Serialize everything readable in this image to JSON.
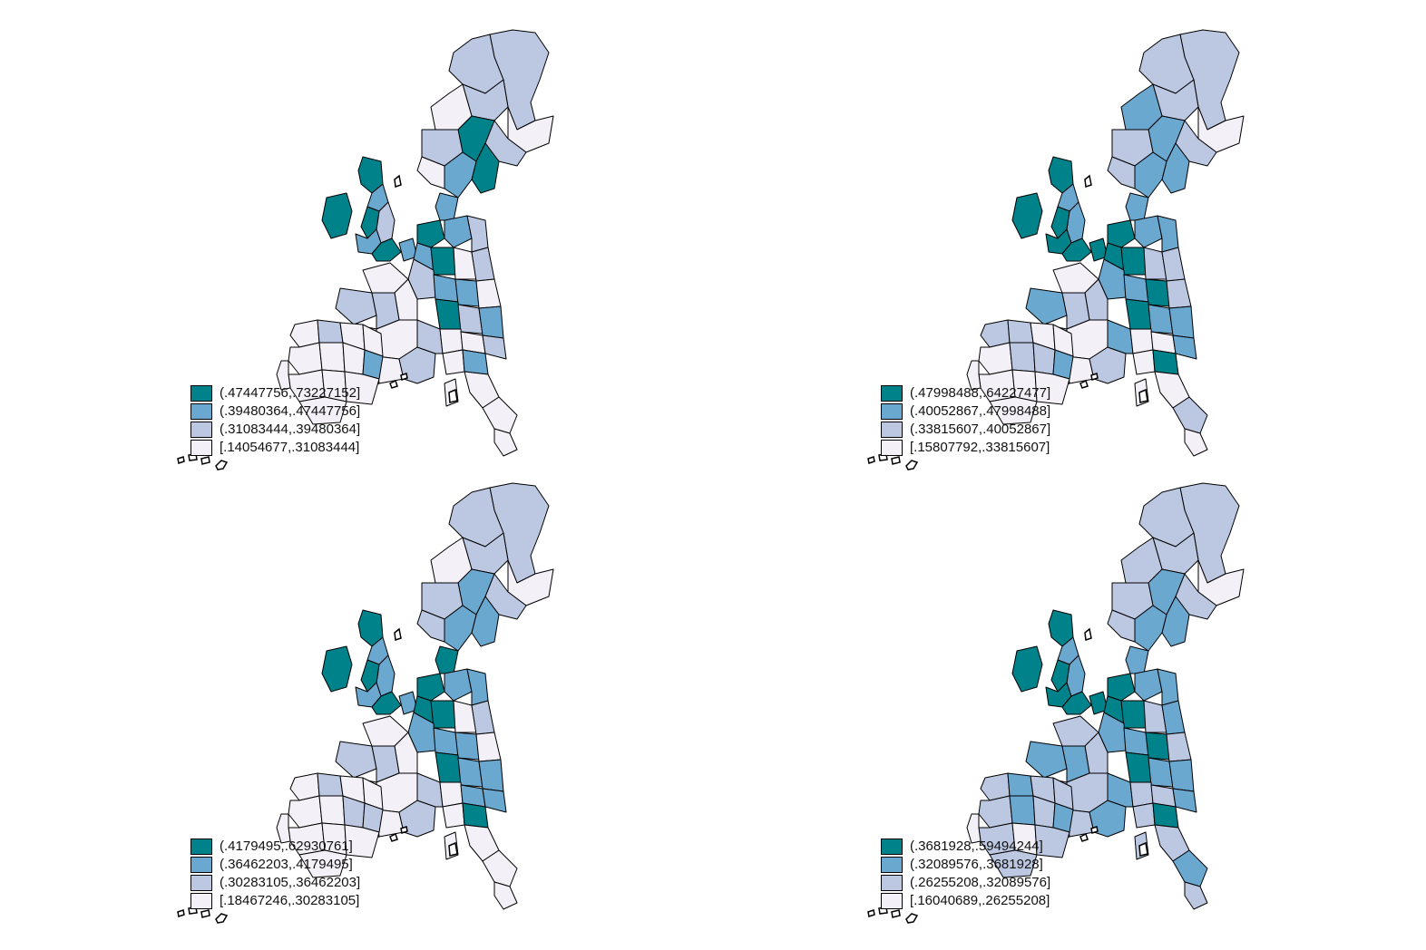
{
  "colors": {
    "class4": "#00828a",
    "class3": "#6aa8d0",
    "class2": "#bcc8e2",
    "class1": "#f4f0f8",
    "border": "#000000"
  },
  "maps": [
    {
      "legend": [
        {
          "label": "(.47447756,.73227152]",
          "class": 4
        },
        {
          "label": "(.39480364,.47447756]",
          "class": 3
        },
        {
          "label": "(.31083444,.39480364]",
          "class": 2
        },
        {
          "label": "[.14054677,.31083444]",
          "class": 1
        }
      ],
      "region_classes": [
        2,
        2,
        1,
        2,
        1,
        2,
        4,
        4,
        2,
        3,
        1,
        3,
        4,
        3,
        2,
        4,
        3,
        4,
        4,
        3,
        4,
        3,
        2,
        3,
        4,
        1,
        2,
        2,
        3,
        3,
        1,
        4,
        2,
        3,
        1,
        1,
        2,
        2,
        1,
        1,
        1,
        1,
        2,
        2,
        1,
        1,
        2,
        1,
        3,
        1,
        1,
        1,
        1,
        1,
        2,
        1,
        1,
        1,
        1,
        1,
        3,
        1,
        1,
        1,
        1
      ]
    },
    {
      "legend": [
        {
          "label": "(.47998488,.64227477]",
          "class": 4
        },
        {
          "label": "(.40052867,.47998488]",
          "class": 3
        },
        {
          "label": "(.33815607,.40052867]",
          "class": 2
        },
        {
          "label": "[.15807792,.33815607]",
          "class": 1
        }
      ],
      "region_classes": [
        2,
        2,
        1,
        2,
        3,
        2,
        3,
        3,
        2,
        3,
        2,
        3,
        4,
        3,
        3,
        4,
        4,
        4,
        4,
        4,
        4,
        3,
        3,
        4,
        4,
        2,
        2,
        3,
        3,
        4,
        2,
        4,
        3,
        3,
        1,
        2,
        3,
        2,
        2,
        1,
        2,
        1,
        2,
        3,
        1,
        1,
        3,
        1,
        4,
        1,
        2,
        1,
        1,
        2,
        2,
        1,
        1,
        1,
        2,
        2,
        3,
        1,
        1,
        1,
        1
      ]
    },
    {
      "legend": [
        {
          "label": "(.4179495,.62930761]",
          "class": 4
        },
        {
          "label": "(.36462203,.4179495]",
          "class": 3
        },
        {
          "label": "(.30283105,.36462203]",
          "class": 2
        },
        {
          "label": "[.18467246,.30283105]",
          "class": 1
        }
      ],
      "region_classes": [
        2,
        2,
        1,
        2,
        1,
        2,
        3,
        3,
        2,
        3,
        2,
        4,
        4,
        3,
        3,
        4,
        3,
        4,
        4,
        3,
        4,
        3,
        3,
        4,
        4,
        1,
        2,
        3,
        3,
        3,
        1,
        4,
        3,
        3,
        1,
        1,
        2,
        2,
        1,
        1,
        1,
        1,
        2,
        2,
        1,
        3,
        3,
        1,
        4,
        1,
        1,
        1,
        1,
        1,
        2,
        1,
        1,
        1,
        1,
        2,
        2,
        1,
        1,
        1,
        1
      ]
    },
    {
      "legend": [
        {
          "label": "(.3681928,.59494244]",
          "class": 4
        },
        {
          "label": "(.32089576,.3681928]",
          "class": 3
        },
        {
          "label": "(.26255208,.32089576]",
          "class": 2
        },
        {
          "label": "[.16040689,.26255208]",
          "class": 1
        }
      ],
      "region_classes": [
        2,
        2,
        1,
        2,
        2,
        2,
        3,
        3,
        2,
        3,
        2,
        3,
        4,
        3,
        3,
        4,
        4,
        4,
        4,
        4,
        4,
        3,
        3,
        4,
        4,
        2,
        3,
        3,
        3,
        4,
        2,
        4,
        3,
        3,
        2,
        2,
        3,
        3,
        2,
        2,
        2,
        2,
        3,
        3,
        2,
        2,
        3,
        2,
        4,
        2,
        3,
        2,
        2,
        2,
        3,
        2,
        2,
        2,
        3,
        2,
        3,
        2,
        1,
        2,
        2
      ]
    }
  ]
}
